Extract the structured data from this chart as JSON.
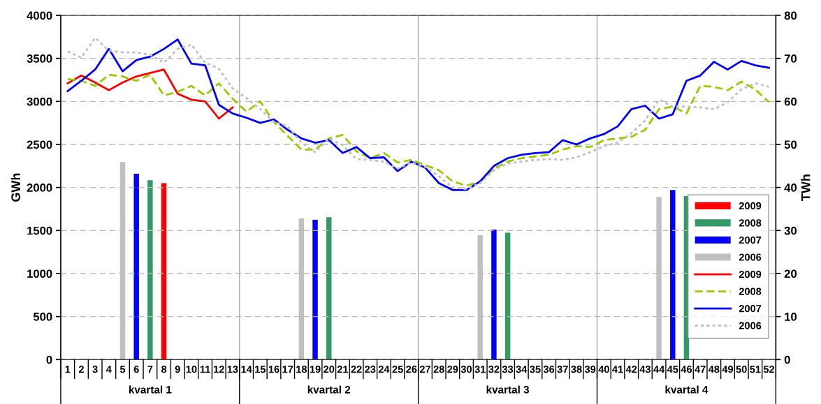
{
  "chart_data": {
    "type": "line",
    "ylabel": "GWh",
    "y2label": "TWh",
    "categories": [
      "1",
      "2",
      "3",
      "4",
      "5",
      "6",
      "7",
      "8",
      "9",
      "10",
      "11",
      "12",
      "13",
      "14",
      "15",
      "16",
      "17",
      "18",
      "19",
      "20",
      "21",
      "22",
      "23",
      "24",
      "25",
      "26",
      "27",
      "28",
      "29",
      "30",
      "31",
      "32",
      "33",
      "34",
      "35",
      "36",
      "37",
      "38",
      "39",
      "40",
      "41",
      "42",
      "43",
      "44",
      "45",
      "46",
      "47",
      "48",
      "49",
      "50",
      "51",
      "52"
    ],
    "annotations": [
      "kvartal 1",
      "kvartal 2",
      "kvartal 3",
      "kvartal 4"
    ],
    "ylim": [
      0,
      4000
    ],
    "yticks": [
      0,
      500,
      1000,
      1500,
      2000,
      2500,
      3000,
      3500,
      4000
    ],
    "y2lim": [
      0,
      80
    ],
    "y2ticks": [
      0,
      10,
      20,
      30,
      40,
      50,
      60,
      70,
      80
    ],
    "grid": "y",
    "legend": "right",
    "series": [
      {
        "name": "2009",
        "type": "bar",
        "axis": "y2",
        "color": "#ff0000",
        "values": [
          null,
          null,
          null,
          null,
          null,
          null,
          null,
          41,
          null,
          null,
          null,
          null,
          null,
          null,
          null,
          null,
          null,
          null,
          null,
          null,
          null,
          null,
          null,
          null,
          null,
          null,
          null,
          null,
          null,
          null,
          null,
          null,
          null,
          null,
          null,
          null,
          null,
          null,
          null,
          null,
          null,
          null,
          null,
          null,
          null,
          null,
          null,
          null,
          null,
          null,
          null,
          null
        ]
      },
      {
        "name": "2008",
        "type": "bar",
        "axis": "y2",
        "color": "#339966",
        "values": [
          null,
          null,
          null,
          null,
          null,
          null,
          41.7,
          null,
          null,
          null,
          null,
          null,
          null,
          null,
          null,
          null,
          null,
          null,
          null,
          33.1,
          null,
          null,
          null,
          null,
          null,
          null,
          null,
          null,
          null,
          null,
          null,
          null,
          29.5,
          null,
          null,
          null,
          null,
          null,
          null,
          null,
          null,
          null,
          null,
          null,
          null,
          38,
          null,
          null,
          null,
          null,
          null,
          null
        ]
      },
      {
        "name": "2007",
        "type": "bar",
        "axis": "y2",
        "color": "#0000ff",
        "values": [
          null,
          null,
          null,
          null,
          null,
          43.2,
          null,
          null,
          null,
          null,
          null,
          null,
          null,
          null,
          null,
          null,
          null,
          null,
          32.5,
          null,
          null,
          null,
          null,
          null,
          null,
          null,
          null,
          null,
          null,
          null,
          null,
          30.2,
          null,
          null,
          null,
          null,
          null,
          null,
          null,
          null,
          null,
          null,
          null,
          null,
          39.4,
          null,
          null,
          null,
          null,
          null,
          null,
          null
        ]
      },
      {
        "name": "2006",
        "type": "bar",
        "axis": "y2",
        "color": "#c0c0c0",
        "values": [
          null,
          null,
          null,
          null,
          45.9,
          null,
          null,
          null,
          null,
          null,
          null,
          null,
          null,
          null,
          null,
          null,
          null,
          32.8,
          null,
          null,
          null,
          null,
          null,
          null,
          null,
          null,
          null,
          null,
          null,
          null,
          28.9,
          null,
          null,
          null,
          null,
          null,
          null,
          null,
          null,
          null,
          null,
          null,
          null,
          37.8,
          null,
          null,
          null,
          null,
          null,
          null,
          null,
          null
        ]
      },
      {
        "name": "2009",
        "line_style": "solid",
        "color": "#ff0000",
        "values": [
          3210,
          3300,
          3220,
          3130,
          3220,
          3290,
          3330,
          3370,
          3090,
          3020,
          3000,
          2800,
          2930,
          null,
          null,
          null,
          null,
          null,
          null,
          null,
          null,
          null,
          null,
          null,
          null,
          null,
          null,
          null,
          null,
          null,
          null,
          null,
          null,
          null,
          null,
          null,
          null,
          null,
          null,
          null,
          null,
          null,
          null,
          null,
          null,
          null,
          null,
          null,
          null,
          null,
          null,
          null
        ]
      },
      {
        "name": "2008",
        "line_style": "dashed",
        "color": "#99cc00",
        "values": [
          3260,
          3240,
          3180,
          3310,
          3290,
          3240,
          3310,
          3070,
          3110,
          3180,
          3070,
          3210,
          3030,
          2880,
          3000,
          2760,
          2600,
          2440,
          2440,
          2570,
          2610,
          2420,
          2340,
          2400,
          2290,
          2320,
          2260,
          2200,
          2070,
          2020,
          2070,
          2220,
          2300,
          2340,
          2360,
          2380,
          2440,
          2480,
          2470,
          2550,
          2570,
          2590,
          2670,
          2910,
          2940,
          2860,
          3180,
          3170,
          3130,
          3230,
          3140,
          2990
        ]
      },
      {
        "name": "2007",
        "line_style": "solid",
        "color": "#0000ff",
        "values": [
          3120,
          3240,
          3370,
          3610,
          3350,
          3480,
          3520,
          3610,
          3720,
          3440,
          3420,
          2960,
          2860,
          2810,
          2750,
          2790,
          2670,
          2570,
          2520,
          2550,
          2400,
          2470,
          2340,
          2350,
          2190,
          2300,
          2230,
          2050,
          1970,
          1970,
          2070,
          2250,
          2340,
          2380,
          2400,
          2410,
          2550,
          2500,
          2570,
          2620,
          2710,
          2910,
          2950,
          2800,
          2850,
          3240,
          3300,
          3460,
          3370,
          3470,
          3420,
          3390
        ]
      },
      {
        "name": "2006",
        "line_style": "dotted",
        "color": "#c0c0c0",
        "values": [
          3580,
          3510,
          3740,
          3590,
          3570,
          3570,
          3540,
          3450,
          3610,
          3660,
          3450,
          3380,
          3150,
          3040,
          2910,
          2760,
          2710,
          2520,
          2410,
          2570,
          2490,
          2330,
          2320,
          2300,
          2220,
          2290,
          2240,
          2130,
          2000,
          1980,
          2050,
          2200,
          2280,
          2300,
          2320,
          2330,
          2320,
          2350,
          2410,
          2480,
          2520,
          2630,
          2780,
          3020,
          2940,
          2940,
          2930,
          2910,
          2990,
          3140,
          3210,
          3170
        ]
      }
    ]
  }
}
